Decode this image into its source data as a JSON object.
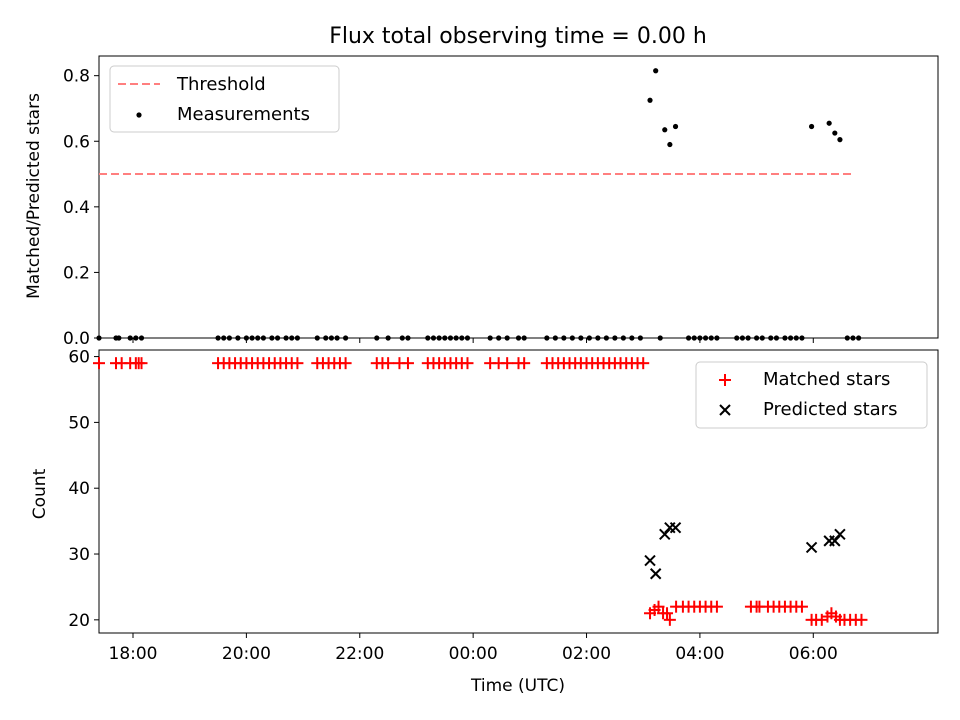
{
  "chart_data": [
    {
      "type": "scatter",
      "title": "Flux total observing time = 0.00 h",
      "xlabel": "",
      "ylabel": "Matched/Predicted stars",
      "xlim": [
        -6.6,
        8.2
      ],
      "ylim": [
        0,
        0.86
      ],
      "yticks": [
        "0.0",
        "0.2",
        "0.4",
        "0.6",
        "0.8"
      ],
      "ytick_values": [
        0.0,
        0.2,
        0.4,
        0.6,
        0.8
      ],
      "xtick_hours": [
        -6,
        -4,
        -2,
        0,
        2,
        4,
        6
      ],
      "threshold": {
        "name": "Threshold",
        "value": 0.5,
        "x_range": [
          -6.6,
          6.7
        ],
        "color": "#ff7f7f"
      },
      "series": [
        {
          "name": "Measurements",
          "color": "#000000",
          "points": [
            [
              -6.6,
              0
            ],
            [
              -6.3,
              0
            ],
            [
              -6.25,
              0
            ],
            [
              -6.05,
              0
            ],
            [
              -5.95,
              0
            ],
            [
              -5.85,
              0
            ],
            [
              -4.5,
              0
            ],
            [
              -4.4,
              0
            ],
            [
              -4.3,
              0
            ],
            [
              -4.15,
              0
            ],
            [
              -4.0,
              0
            ],
            [
              -3.9,
              0
            ],
            [
              -3.8,
              0
            ],
            [
              -3.7,
              0
            ],
            [
              -3.55,
              0
            ],
            [
              -3.45,
              0
            ],
            [
              -3.3,
              0
            ],
            [
              -3.2,
              0
            ],
            [
              -3.1,
              0
            ],
            [
              -2.75,
              0
            ],
            [
              -2.6,
              0
            ],
            [
              -2.5,
              0
            ],
            [
              -2.4,
              0
            ],
            [
              -2.25,
              0
            ],
            [
              -1.7,
              0
            ],
            [
              -1.5,
              0
            ],
            [
              -1.25,
              0
            ],
            [
              -1.15,
              0
            ],
            [
              -0.8,
              0
            ],
            [
              -0.7,
              0
            ],
            [
              -0.6,
              0
            ],
            [
              -0.5,
              0
            ],
            [
              -0.4,
              0
            ],
            [
              -0.3,
              0
            ],
            [
              -0.2,
              0
            ],
            [
              -0.1,
              0
            ],
            [
              0.3,
              0
            ],
            [
              0.45,
              0
            ],
            [
              0.6,
              0
            ],
            [
              0.8,
              0
            ],
            [
              0.9,
              0
            ],
            [
              1.3,
              0
            ],
            [
              1.45,
              0
            ],
            [
              1.6,
              0
            ],
            [
              1.75,
              0
            ],
            [
              1.9,
              0
            ],
            [
              2.05,
              0
            ],
            [
              2.2,
              0
            ],
            [
              2.35,
              0
            ],
            [
              2.5,
              0
            ],
            [
              2.65,
              0
            ],
            [
              2.8,
              0
            ],
            [
              2.95,
              0
            ],
            [
              3.3,
              0
            ],
            [
              3.8,
              0
            ],
            [
              3.9,
              0
            ],
            [
              4.0,
              0
            ],
            [
              4.1,
              0
            ],
            [
              4.2,
              0
            ],
            [
              4.3,
              0
            ],
            [
              4.65,
              0
            ],
            [
              4.75,
              0
            ],
            [
              4.85,
              0
            ],
            [
              5.0,
              0
            ],
            [
              5.1,
              0
            ],
            [
              5.25,
              0
            ],
            [
              5.35,
              0
            ],
            [
              5.5,
              0
            ],
            [
              5.6,
              0
            ],
            [
              5.7,
              0
            ],
            [
              5.8,
              0
            ],
            [
              6.6,
              0
            ],
            [
              6.7,
              0
            ],
            [
              6.8,
              0
            ],
            [
              3.12,
              0.725
            ],
            [
              3.22,
              0.815
            ],
            [
              3.38,
              0.635
            ],
            [
              3.47,
              0.59
            ],
            [
              3.57,
              0.645
            ],
            [
              5.97,
              0.645
            ],
            [
              6.28,
              0.655
            ],
            [
              6.38,
              0.625
            ],
            [
              6.47,
              0.605
            ]
          ]
        }
      ]
    },
    {
      "type": "scatter",
      "title": "",
      "xlabel": "Time (UTC)",
      "ylabel": "Count",
      "xlim": [
        -6.6,
        8.2
      ],
      "ylim": [
        18,
        61
      ],
      "yticks": [
        "20",
        "30",
        "40",
        "50",
        "60"
      ],
      "ytick_values": [
        20,
        30,
        40,
        50,
        60
      ],
      "xticks": [
        "18:00",
        "20:00",
        "22:00",
        "00:00",
        "02:00",
        "04:00",
        "06:00"
      ],
      "xtick_hours": [
        -6,
        -4,
        -2,
        0,
        2,
        4,
        6
      ],
      "series": [
        {
          "name": "Matched stars",
          "marker": "plus",
          "color": "#ff0000",
          "points": [
            [
              -6.6,
              59
            ],
            [
              -6.3,
              59
            ],
            [
              -6.2,
              59
            ],
            [
              -6.05,
              59
            ],
            [
              -5.95,
              59
            ],
            [
              -5.9,
              59
            ],
            [
              -5.85,
              59
            ],
            [
              -4.5,
              59
            ],
            [
              -4.4,
              59
            ],
            [
              -4.3,
              59
            ],
            [
              -4.2,
              59
            ],
            [
              -4.1,
              59
            ],
            [
              -4.0,
              59
            ],
            [
              -3.9,
              59
            ],
            [
              -3.8,
              59
            ],
            [
              -3.7,
              59
            ],
            [
              -3.6,
              59
            ],
            [
              -3.5,
              59
            ],
            [
              -3.4,
              59
            ],
            [
              -3.3,
              59
            ],
            [
              -3.2,
              59
            ],
            [
              -3.1,
              59
            ],
            [
              -2.75,
              59
            ],
            [
              -2.65,
              59
            ],
            [
              -2.55,
              59
            ],
            [
              -2.45,
              59
            ],
            [
              -2.35,
              59
            ],
            [
              -2.25,
              59
            ],
            [
              -1.7,
              59
            ],
            [
              -1.6,
              59
            ],
            [
              -1.5,
              59
            ],
            [
              -1.3,
              59
            ],
            [
              -1.15,
              59
            ],
            [
              -0.8,
              59
            ],
            [
              -0.7,
              59
            ],
            [
              -0.6,
              59
            ],
            [
              -0.5,
              59
            ],
            [
              -0.4,
              59
            ],
            [
              -0.3,
              59
            ],
            [
              -0.2,
              59
            ],
            [
              -0.1,
              59
            ],
            [
              0.3,
              59
            ],
            [
              0.45,
              59
            ],
            [
              0.6,
              59
            ],
            [
              0.8,
              59
            ],
            [
              0.9,
              59
            ],
            [
              1.3,
              59
            ],
            [
              1.4,
              59
            ],
            [
              1.5,
              59
            ],
            [
              1.6,
              59
            ],
            [
              1.7,
              59
            ],
            [
              1.8,
              59
            ],
            [
              1.9,
              59
            ],
            [
              2.0,
              59
            ],
            [
              2.1,
              59
            ],
            [
              2.2,
              59
            ],
            [
              2.3,
              59
            ],
            [
              2.4,
              59
            ],
            [
              2.5,
              59
            ],
            [
              2.6,
              59
            ],
            [
              2.7,
              59
            ],
            [
              2.8,
              59
            ],
            [
              2.9,
              59
            ],
            [
              3.0,
              59
            ],
            [
              3.12,
              21
            ],
            [
              3.2,
              21.5
            ],
            [
              3.27,
              22
            ],
            [
              3.35,
              21
            ],
            [
              3.42,
              21
            ],
            [
              3.47,
              20
            ],
            [
              3.58,
              22
            ],
            [
              3.7,
              22
            ],
            [
              3.8,
              22
            ],
            [
              3.9,
              22
            ],
            [
              4.0,
              22
            ],
            [
              4.1,
              22
            ],
            [
              4.2,
              22
            ],
            [
              4.3,
              22
            ],
            [
              4.9,
              22
            ],
            [
              5.0,
              22
            ],
            [
              5.05,
              22
            ],
            [
              5.2,
              22
            ],
            [
              5.3,
              22
            ],
            [
              5.4,
              22
            ],
            [
              5.5,
              22
            ],
            [
              5.6,
              22
            ],
            [
              5.7,
              22
            ],
            [
              5.8,
              22
            ],
            [
              5.97,
              20
            ],
            [
              6.05,
              20
            ],
            [
              6.15,
              20
            ],
            [
              6.25,
              20.5
            ],
            [
              6.32,
              21
            ],
            [
              6.4,
              20.5
            ],
            [
              6.47,
              20
            ],
            [
              6.55,
              20
            ],
            [
              6.65,
              20
            ],
            [
              6.75,
              20
            ],
            [
              6.85,
              20
            ]
          ]
        },
        {
          "name": "Predicted stars",
          "marker": "x",
          "color": "#000000",
          "points": [
            [
              3.12,
              29
            ],
            [
              3.22,
              27
            ],
            [
              3.38,
              33
            ],
            [
              3.47,
              34
            ],
            [
              3.57,
              34
            ],
            [
              5.97,
              31
            ],
            [
              6.28,
              32
            ],
            [
              6.38,
              32
            ],
            [
              6.47,
              33
            ]
          ]
        }
      ]
    }
  ]
}
